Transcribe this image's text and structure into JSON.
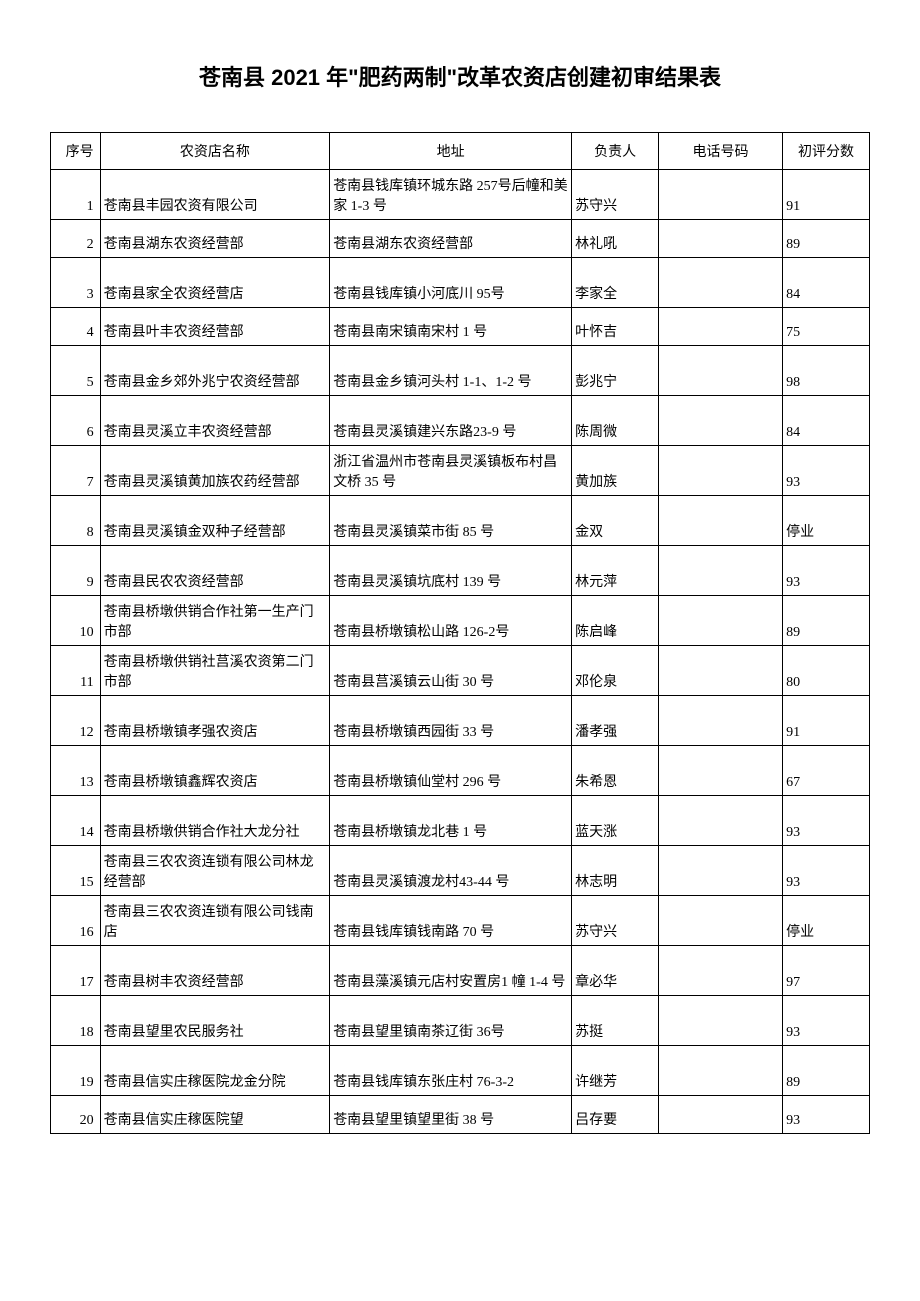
{
  "title": "苍南县 2021 年\"肥药两制\"改革农资店创建初审结果表",
  "headers": {
    "seq": "序号",
    "name": "农资店名称",
    "addr": "地址",
    "person": "负责人",
    "phone": "电话号码",
    "score": "初评分数"
  },
  "rows": [
    {
      "seq": "1",
      "name": "苍南县丰园农资有限公司",
      "addr": "苍南县钱库镇环城东路 257号后幢和美家 1-3 号",
      "person": "苏守兴",
      "phone": "",
      "score": "91",
      "tall": true
    },
    {
      "seq": "2",
      "name": "苍南县湖东农资经营部",
      "addr": "苍南县湖东农资经营部",
      "person": "林礼吼",
      "phone": "",
      "score": "89",
      "tall": false
    },
    {
      "seq": "3",
      "name": "苍南县家全农资经营店",
      "addr": "苍南县钱库镇小河底川 95号",
      "person": "李家全",
      "phone": "",
      "score": "84",
      "tall": true
    },
    {
      "seq": "4",
      "name": "苍南县叶丰农资经营部",
      "addr": "苍南县南宋镇南宋村 1 号",
      "person": "叶怀吉",
      "phone": "",
      "score": "75",
      "tall": false
    },
    {
      "seq": "5",
      "name": "苍南县金乡郊外兆宁农资经营部",
      "addr": "苍南县金乡镇河头村 1-1、1-2 号",
      "person": "彭兆宁",
      "phone": "",
      "score": "98",
      "tall": true
    },
    {
      "seq": "6",
      "name": "苍南县灵溪立丰农资经营部",
      "addr": "苍南县灵溪镇建兴东路23-9 号",
      "person": "陈周微",
      "phone": "",
      "score": "84",
      "tall": true
    },
    {
      "seq": "7",
      "name": "苍南县灵溪镇黄加族农药经营部",
      "addr": "浙江省温州市苍南县灵溪镇板布村昌文桥 35 号",
      "person": "黄加族",
      "phone": "",
      "score": "93",
      "tall": true
    },
    {
      "seq": "8",
      "name": "苍南县灵溪镇金双种子经营部",
      "addr": "苍南县灵溪镇菜市街 85 号",
      "person": "金双",
      "phone": "",
      "score": "停业",
      "tall": true
    },
    {
      "seq": "9",
      "name": "苍南县民农农资经营部",
      "addr": "苍南县灵溪镇坑底村 139 号",
      "person": "林元萍",
      "phone": "",
      "score": "93",
      "tall": true
    },
    {
      "seq": "10",
      "name": "苍南县桥墩供销合作社第一生产门市部",
      "addr": "苍南县桥墩镇松山路 126-2号",
      "person": "陈启峰",
      "phone": "",
      "score": "89",
      "tall": true
    },
    {
      "seq": "11",
      "name": "苍南县桥墩供销社莒溪农资第二门市部",
      "addr": "苍南县莒溪镇云山街 30 号",
      "person": "邓伦泉",
      "phone": "",
      "score": "80",
      "tall": true
    },
    {
      "seq": "12",
      "name": "苍南县桥墩镇孝强农资店",
      "addr": "苍南县桥墩镇西园街 33 号",
      "person": "潘孝强",
      "phone": "",
      "score": "91",
      "tall": true
    },
    {
      "seq": "13",
      "name": "苍南县桥墩镇鑫辉农资店",
      "addr": "苍南县桥墩镇仙堂村 296 号",
      "person": "朱希恩",
      "phone": "",
      "score": "67",
      "tall": true
    },
    {
      "seq": "14",
      "name": "苍南县桥墩供销合作社大龙分社",
      "addr": "苍南县桥墩镇龙北巷 1 号",
      "person": "蓝天涨",
      "phone": "",
      "score": "93",
      "tall": true
    },
    {
      "seq": "15",
      "name": "苍南县三农农资连锁有限公司林龙经营部",
      "addr": "苍南县灵溪镇渡龙村43-44 号",
      "person": "林志明",
      "phone": "",
      "score": "93",
      "tall": true
    },
    {
      "seq": "16",
      "name": "苍南县三农农资连锁有限公司钱南店",
      "addr": "苍南县钱库镇钱南路 70 号",
      "person": "苏守兴",
      "phone": "",
      "score": "停业",
      "tall": true
    },
    {
      "seq": "17",
      "name": "苍南县树丰农资经营部",
      "addr": "苍南县藻溪镇元店村安置房1 幢 1-4 号",
      "person": "章必华",
      "phone": "",
      "score": "97",
      "tall": true
    },
    {
      "seq": "18",
      "name": "苍南县望里农民服务社",
      "addr": "苍南县望里镇南茶辽街 36号",
      "person": "苏挺",
      "phone": "",
      "score": "93",
      "tall": true
    },
    {
      "seq": "19",
      "name": "苍南县信实庄稼医院龙金分院",
      "addr": "苍南县钱库镇东张庄村 76-3-2",
      "person": "许继芳",
      "phone": "",
      "score": "89",
      "tall": true
    },
    {
      "seq": "20",
      "name": "苍南县信实庄稼医院望",
      "addr": "苍南县望里镇望里街 38 号",
      "person": "吕存要",
      "phone": "",
      "score": "93",
      "tall": false
    }
  ]
}
